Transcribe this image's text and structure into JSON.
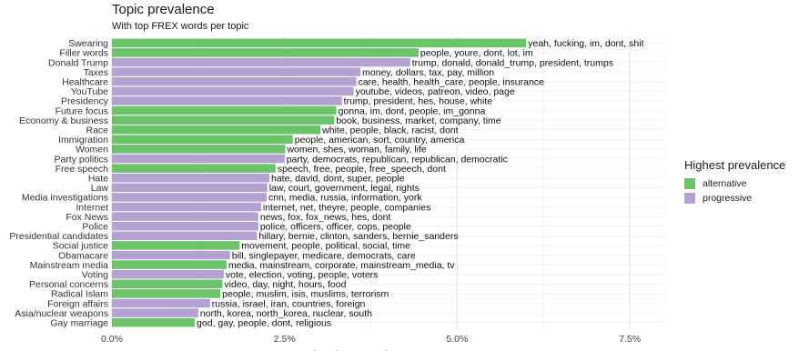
{
  "title": "Topic prevalence",
  "subtitle": "With top FREX words per topic",
  "colors": {
    "alternative": "#6cc46a",
    "progressive": "#b3a1d1"
  },
  "legend": {
    "title": "Highest prevalence",
    "items": [
      {
        "label": "alternative",
        "color": "#6cc46a"
      },
      {
        "label": "progressive",
        "color": "#b3a1d1"
      }
    ]
  },
  "chart_data": {
    "type": "bar",
    "orientation": "horizontal",
    "xlabel": "Expected topic proportion",
    "xlim": [
      0,
      0.08
    ],
    "xticks": [
      0,
      0.025,
      0.05,
      0.075
    ],
    "xtick_labels": [
      "0.0%",
      "2.5%",
      "5.0%",
      "7.5%"
    ],
    "grid": true,
    "legend_position": "right",
    "bars": [
      {
        "topic": "Swearing",
        "value": 0.06,
        "group": "alternative",
        "words": "yeah, fucking, im, dont, shit"
      },
      {
        "topic": "Filler words",
        "value": 0.0444,
        "group": "alternative",
        "words": "people, youre, dont, lot, im"
      },
      {
        "topic": "Donald Trump",
        "value": 0.0432,
        "group": "progressive",
        "words": "trump, donald, donald_trump, president, trumps"
      },
      {
        "topic": "Taxes",
        "value": 0.036,
        "group": "progressive",
        "words": "money, dollars, tax, pay, million"
      },
      {
        "topic": "Healthcare",
        "value": 0.0354,
        "group": "progressive",
        "words": "care, health, health_care, people, insurance"
      },
      {
        "topic": "YouTube",
        "value": 0.035,
        "group": "progressive",
        "words": "youtube, videos, patreon, video, page"
      },
      {
        "topic": "Presidency",
        "value": 0.0333,
        "group": "progressive",
        "words": "trump, president, hes, house, white"
      },
      {
        "topic": "Future focus",
        "value": 0.0325,
        "group": "alternative",
        "words": "gonna, im, dont, people, im_gonna"
      },
      {
        "topic": "Economy & business",
        "value": 0.0322,
        "group": "alternative",
        "words": "book, business, market, company, time"
      },
      {
        "topic": "Race",
        "value": 0.0302,
        "group": "alternative",
        "words": "white, people, black, racist, dont"
      },
      {
        "topic": "Immigration",
        "value": 0.0262,
        "group": "alternative",
        "words": "people, american, sort, country, america"
      },
      {
        "topic": "Women",
        "value": 0.0251,
        "group": "alternative",
        "words": "women, shes, woman, family, life"
      },
      {
        "topic": "Party politics",
        "value": 0.025,
        "group": "progressive",
        "words": "party, democrats, republican, republican, democratic"
      },
      {
        "topic": "Free speech",
        "value": 0.0237,
        "group": "alternative",
        "words": "speech, free, people, free_speech, dont"
      },
      {
        "topic": "Hate",
        "value": 0.0228,
        "group": "progressive",
        "words": "hate, david, dont, super, people"
      },
      {
        "topic": "Law",
        "value": 0.0225,
        "group": "progressive",
        "words": "law, court, government, legal, rights"
      },
      {
        "topic": "Media investigations",
        "value": 0.0224,
        "group": "progressive",
        "words": "cnn, media, russia, information, york"
      },
      {
        "topic": "Internet",
        "value": 0.0216,
        "group": "progressive",
        "words": "internet, net, theyre, people, companies"
      },
      {
        "topic": "Fox News",
        "value": 0.0212,
        "group": "progressive",
        "words": "news, fox, fox_news, hes, dont"
      },
      {
        "topic": "Police",
        "value": 0.0212,
        "group": "progressive",
        "words": "police, officers, officer, cops, people"
      },
      {
        "topic": "Presidential candidates",
        "value": 0.021,
        "group": "progressive",
        "words": "hillary, bernie, clinton, sanders, bernie_sanders"
      },
      {
        "topic": "Social justice",
        "value": 0.0185,
        "group": "alternative",
        "words": "movement, people, political, social, time"
      },
      {
        "topic": "Obamacare",
        "value": 0.0171,
        "group": "progressive",
        "words": "bill, singlepayer, medicare, democrats, care"
      },
      {
        "topic": "Mainstream media",
        "value": 0.0166,
        "group": "alternative",
        "words": "media, mainstream, corporate, mainstream_media, tv"
      },
      {
        "topic": "Voting",
        "value": 0.0162,
        "group": "progressive",
        "words": "vote, election, voting, people, voters"
      },
      {
        "topic": "Personal concerns",
        "value": 0.016,
        "group": "alternative",
        "words": "video, day, night, hours, food"
      },
      {
        "topic": "Radical Islam",
        "value": 0.0157,
        "group": "alternative",
        "words": "people, muslim, isis, muslims, terrorism"
      },
      {
        "topic": "Foreign affairs",
        "value": 0.0142,
        "group": "progressive",
        "words": "russia, israel, iran, countries, foreign"
      },
      {
        "topic": "Asia/nuclear weapons",
        "value": 0.0125,
        "group": "progressive",
        "words": "north, korea, north_korea, nuclear, south"
      },
      {
        "topic": "Gay marriage",
        "value": 0.012,
        "group": "alternative",
        "words": "god, gay, people, dont, religious"
      }
    ]
  }
}
